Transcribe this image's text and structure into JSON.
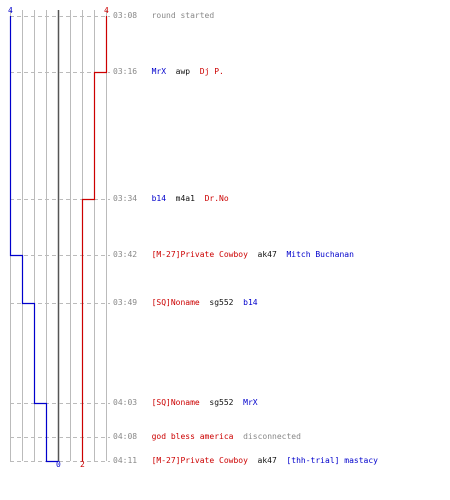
{
  "scores": {
    "blue_start": "4",
    "red_start": "4",
    "blue_end": "0",
    "red_end": "2"
  },
  "colors": {
    "blue_team": "#0000cc",
    "red_team": "#cc0000",
    "timestamp": "#888888",
    "grid": "#bbbbbb",
    "center_line": "#555555"
  },
  "events": [
    {
      "time": "03:08",
      "parts": [
        {
          "text": "round started",
          "class": "grey"
        }
      ]
    },
    {
      "time": "03:16",
      "parts": [
        {
          "text": "MrX",
          "class": "blue"
        },
        {
          "text": " awp ",
          "class": "black"
        },
        {
          "text": "Dj P.",
          "class": "red"
        }
      ]
    },
    {
      "time": "03:34",
      "parts": [
        {
          "text": "b14",
          "class": "blue"
        },
        {
          "text": " m4a1 ",
          "class": "black"
        },
        {
          "text": "Dr.No",
          "class": "red"
        }
      ]
    },
    {
      "time": "03:42",
      "parts": [
        {
          "text": "[M-27]Private Cowboy",
          "class": "red"
        },
        {
          "text": " ak47 ",
          "class": "black"
        },
        {
          "text": "Mitch Buchanan",
          "class": "blue"
        }
      ]
    },
    {
      "time": "03:49",
      "parts": [
        {
          "text": "[SQ]Noname",
          "class": "red"
        },
        {
          "text": " sg552 ",
          "class": "black"
        },
        {
          "text": "b14",
          "class": "blue"
        }
      ]
    },
    {
      "time": "04:03",
      "parts": [
        {
          "text": "[SQ]Noname",
          "class": "red"
        },
        {
          "text": " sg552 ",
          "class": "black"
        },
        {
          "text": "MrX",
          "class": "blue"
        }
      ]
    },
    {
      "time": "04:08",
      "parts": [
        {
          "text": "god bless america",
          "class": "red"
        },
        {
          "text": " disconnected",
          "class": "grey"
        }
      ]
    },
    {
      "time": "04:11",
      "parts": [
        {
          "text": "[M-27]Private Cowboy",
          "class": "red"
        },
        {
          "text": " ak47 ",
          "class": "black"
        },
        {
          "text": "[thh-trial] mastacy",
          "class": "blue"
        }
      ]
    }
  ]
}
